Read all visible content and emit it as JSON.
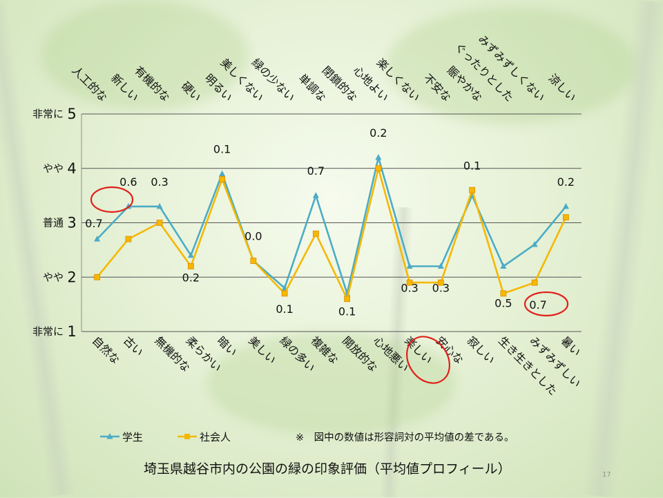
{
  "chart_data": {
    "type": "line",
    "title": "埼玉県越谷市内の公園の緑の印象評価（平均値プロフィール）",
    "note": "※　図中の数値は形容詞対の平均値の差である。",
    "page_number": "17",
    "ylim": [
      1,
      5
    ],
    "y_ticks": [
      {
        "value": 5,
        "word": "非常に",
        "num": "5"
      },
      {
        "value": 4,
        "word": "やや",
        "num": "4"
      },
      {
        "value": 3,
        "word": "普通",
        "num": "3"
      },
      {
        "value": 2,
        "word": "やや",
        "num": "2"
      },
      {
        "value": 1,
        "word": "非常に",
        "num": "1"
      }
    ],
    "top_labels": [
      "人工的な",
      "新しい",
      "有機的な",
      "硬い",
      "明るい",
      "美しくない",
      "緑の少ない",
      "単調な",
      "閉鎖的な",
      "心地よい",
      "楽しくない",
      "不安な",
      "賑やかな",
      "ぐったりとした",
      "みずみずしくない",
      "涼しい"
    ],
    "bottom_labels": [
      "自然な",
      "古い",
      "無機的な",
      "柔らかい",
      "暗い",
      "美しい",
      "緑の多い",
      "複雑な",
      "開放的な",
      "心地悪い",
      "楽しい",
      "安心な",
      "寂しい",
      "生き生きとした",
      "みずみずしい",
      "暑い"
    ],
    "series": [
      {
        "name": "学生",
        "color": "#4bacc6",
        "marker": "triangle",
        "values": [
          2.7,
          3.3,
          3.3,
          2.4,
          3.9,
          2.3,
          1.8,
          3.5,
          1.7,
          4.2,
          2.2,
          2.2,
          3.5,
          2.2,
          2.6,
          3.3
        ]
      },
      {
        "name": "社会人",
        "color": "#f5b800",
        "marker": "square",
        "values": [
          2.0,
          2.7,
          3.0,
          2.2,
          3.8,
          2.3,
          1.7,
          2.8,
          1.6,
          4.0,
          1.9,
          1.9,
          3.6,
          1.7,
          1.9,
          3.1
        ]
      }
    ],
    "difference_labels": [
      "0.7",
      "0.6",
      "0.3",
      "0.2",
      "0.1",
      "0.0",
      "0.1",
      "0.7",
      "0.1",
      "0.2",
      "0.3",
      "0.3",
      "0.1",
      "0.5",
      "0.7",
      "0.2"
    ],
    "highlighted_items": [
      "人工的な/自然な",
      "楽しい",
      "みずみずしい"
    ],
    "highlight_color": "#e0201b",
    "grid": true
  }
}
